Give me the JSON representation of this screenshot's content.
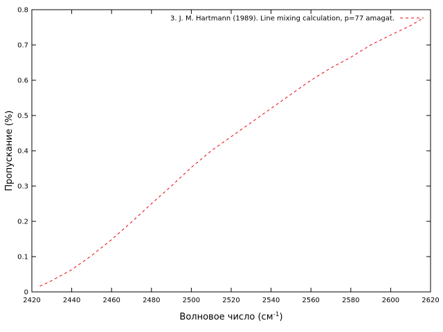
{
  "chart_data": {
    "type": "line",
    "title": "",
    "xlabel_main": "Волновое число (см",
    "xlabel_sup": "-1",
    "xlabel_close": ")",
    "ylabel": "Пропускание (%)",
    "xlim": [
      2420,
      2620
    ],
    "ylim": [
      0,
      0.8
    ],
    "xticks": [
      "2420",
      "2440",
      "2460",
      "2480",
      "2500",
      "2520",
      "2540",
      "2560",
      "2580",
      "2600",
      "2620"
    ],
    "yticks": [
      "0",
      "0.1",
      "0.2",
      "0.3",
      "0.4",
      "0.5",
      "0.6",
      "0.7",
      "0.8"
    ],
    "grid": false,
    "legend_position": "top-right",
    "series": [
      {
        "name": "3. J. M. Hartmann (1989). Line mixing calculation, p=77 amagat.",
        "color": "#e8000b",
        "style": "dashed",
        "x": [
          2424,
          2430,
          2440,
          2450,
          2460,
          2470,
          2480,
          2490,
          2500,
          2510,
          2520,
          2530,
          2540,
          2550,
          2560,
          2570,
          2580,
          2590,
          2600,
          2610,
          2616
        ],
        "y": [
          0.016,
          0.032,
          0.063,
          0.103,
          0.148,
          0.198,
          0.25,
          0.3,
          0.353,
          0.4,
          0.44,
          0.48,
          0.52,
          0.56,
          0.6,
          0.635,
          0.665,
          0.7,
          0.728,
          0.755,
          0.775
        ]
      }
    ]
  }
}
